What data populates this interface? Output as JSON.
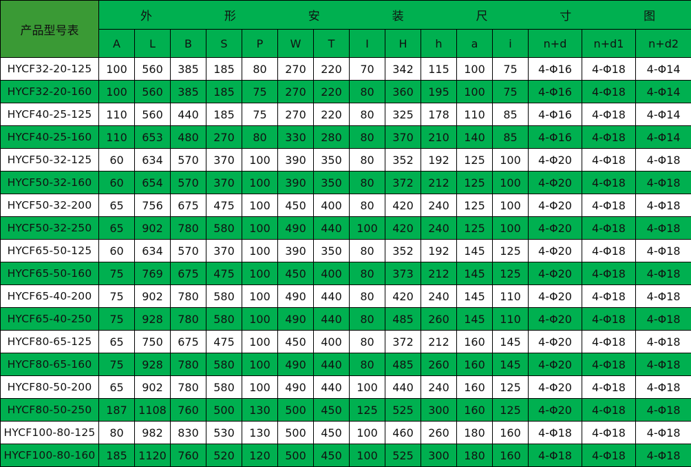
{
  "corner_label": "产品型号表",
  "group_header_chars": [
    "外",
    "形",
    "安",
    "装",
    "尺",
    "寸",
    "图"
  ],
  "columns": [
    "A",
    "L",
    "B",
    "S",
    "P",
    "W",
    "T",
    "I",
    "H",
    "h",
    "a",
    "i",
    "n+d",
    "n+d1",
    "n+d2"
  ],
  "colors": {
    "green": "#00B050",
    "corner": "#3A9A35",
    "white": "#FFFFFF"
  },
  "rows": [
    [
      "HYCF32-20-125",
      "100",
      "560",
      "385",
      "185",
      "80",
      "270",
      "220",
      "70",
      "342",
      "115",
      "100",
      "75",
      "4-Φ16",
      "4-Φ18",
      "4-Φ14"
    ],
    [
      "HYCF32-20-160",
      "100",
      "560",
      "385",
      "185",
      "75",
      "270",
      "220",
      "80",
      "360",
      "195",
      "100",
      "75",
      "4-Φ16",
      "4-Φ18",
      "4-Φ14"
    ],
    [
      "HYCF40-25-125",
      "110",
      "560",
      "440",
      "185",
      "75",
      "270",
      "220",
      "80",
      "325",
      "178",
      "110",
      "85",
      "4-Φ16",
      "4-Φ18",
      "4-Φ14"
    ],
    [
      "HYCF40-25-160",
      "110",
      "653",
      "480",
      "270",
      "80",
      "330",
      "280",
      "80",
      "370",
      "210",
      "140",
      "85",
      "4-Φ16",
      "4-Φ18",
      "4-Φ14"
    ],
    [
      "HYCF50-32-125",
      "60",
      "634",
      "570",
      "370",
      "100",
      "390",
      "350",
      "80",
      "352",
      "192",
      "125",
      "100",
      "4-Φ20",
      "4-Φ18",
      "4-Φ18"
    ],
    [
      "HYCF50-32-160",
      "60",
      "654",
      "570",
      "370",
      "100",
      "390",
      "350",
      "80",
      "372",
      "212",
      "125",
      "100",
      "4-Φ20",
      "4-Φ18",
      "4-Φ18"
    ],
    [
      "HYCF50-32-200",
      "65",
      "756",
      "675",
      "475",
      "100",
      "450",
      "400",
      "80",
      "420",
      "240",
      "125",
      "100",
      "4-Φ20",
      "4-Φ18",
      "4-Φ18"
    ],
    [
      "HYCF50-32-250",
      "65",
      "902",
      "780",
      "580",
      "100",
      "490",
      "440",
      "100",
      "420",
      "240",
      "125",
      "100",
      "4-Φ20",
      "4-Φ18",
      "4-Φ18"
    ],
    [
      "HYCF65-50-125",
      "60",
      "634",
      "570",
      "370",
      "100",
      "390",
      "350",
      "80",
      "352",
      "192",
      "145",
      "125",
      "4-Φ20",
      "4-Φ18",
      "4-Φ18"
    ],
    [
      "HYCF65-50-160",
      "75",
      "769",
      "675",
      "475",
      "100",
      "450",
      "400",
      "80",
      "373",
      "212",
      "145",
      "125",
      "4-Φ20",
      "4-Φ18",
      "4-Φ18"
    ],
    [
      "HYCF65-40-200",
      "75",
      "902",
      "780",
      "580",
      "100",
      "490",
      "440",
      "80",
      "420",
      "240",
      "145",
      "110",
      "4-Φ20",
      "4-Φ18",
      "4-Φ18"
    ],
    [
      "HYCF65-40-250",
      "75",
      "928",
      "780",
      "580",
      "100",
      "490",
      "440",
      "80",
      "485",
      "260",
      "145",
      "110",
      "4-Φ20",
      "4-Φ18",
      "4-Φ18"
    ],
    [
      "HYCF80-65-125",
      "65",
      "750",
      "675",
      "475",
      "100",
      "450",
      "400",
      "80",
      "372",
      "212",
      "160",
      "145",
      "4-Φ20",
      "4-Φ18",
      "4-Φ18"
    ],
    [
      "HYCF80-65-160",
      "75",
      "928",
      "780",
      "580",
      "100",
      "490",
      "440",
      "80",
      "485",
      "260",
      "160",
      "145",
      "4-Φ20",
      "4-Φ18",
      "4-Φ18"
    ],
    [
      "HYCF80-50-200",
      "65",
      "902",
      "780",
      "580",
      "100",
      "490",
      "440",
      "100",
      "440",
      "240",
      "160",
      "125",
      "4-Φ20",
      "4-Φ18",
      "4-Φ18"
    ],
    [
      "HYCF80-50-250",
      "187",
      "1108",
      "760",
      "500",
      "130",
      "500",
      "450",
      "125",
      "525",
      "300",
      "160",
      "125",
      "4-Φ20",
      "4-Φ18",
      "4-Φ18"
    ],
    [
      "HYCF100-80-125",
      "80",
      "982",
      "830",
      "530",
      "130",
      "500",
      "450",
      "100",
      "460",
      "260",
      "180",
      "160",
      "4-Φ18",
      "4-Φ18",
      "4-Φ18"
    ],
    [
      "HYCF100-80-160",
      "185",
      "1120",
      "760",
      "520",
      "120",
      "500",
      "450",
      "100",
      "525",
      "300",
      "180",
      "160",
      "4-Φ18",
      "4-Φ18",
      "4-Φ18"
    ]
  ]
}
